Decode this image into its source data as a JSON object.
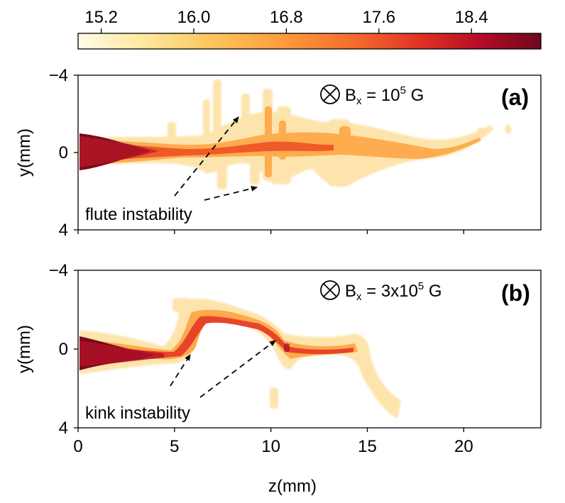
{
  "colorbar": {
    "ticks": [
      "15.2",
      "16.0",
      "16.8",
      "17.6",
      "18.4"
    ],
    "range": [
      15.0,
      19.0
    ],
    "cmap_stops": [
      "#fffbe6",
      "#fee69a",
      "#fdc25a",
      "#fd9a3a",
      "#f46a2e",
      "#dd2e24",
      "#b00a26",
      "#6c0a1e"
    ]
  },
  "xaxis": {
    "label": "z(mm)",
    "ticks": [
      "0",
      "5",
      "10",
      "15",
      "20"
    ],
    "range": [
      0,
      24
    ]
  },
  "panels": [
    {
      "id": "a",
      "ylabel": "y(mm)",
      "yticks": [
        "−4",
        "0",
        "4"
      ],
      "yrange": [
        -4,
        4
      ],
      "field_label": "B",
      "field_sub": "x",
      "field_eq": " = 10",
      "field_sup": "5",
      "field_unit": " G",
      "letter": "(a)",
      "annotation": "flute instability"
    },
    {
      "id": "b",
      "ylabel": "y(mm)",
      "yticks": [
        "−4",
        "0",
        "4"
      ],
      "yrange": [
        -4,
        4
      ],
      "field_label": "B",
      "field_sub": "x",
      "field_eq": " = 3x10",
      "field_sup": "5",
      "field_unit": " G",
      "letter": "(b)",
      "annotation": "kink instability"
    }
  ],
  "chart_data": {
    "type": "heatmap",
    "xlabel": "z(mm)",
    "ylabel": "y(mm)",
    "xlim": [
      0,
      24
    ],
    "ylim": [
      -4,
      4
    ],
    "colorbar_ticks": [
      15.2,
      16.0,
      16.8,
      17.6,
      18.4
    ],
    "panels": [
      "(a)",
      "(b)"
    ],
    "annotations": [
      "flute instability",
      "kink instability"
    ]
  }
}
